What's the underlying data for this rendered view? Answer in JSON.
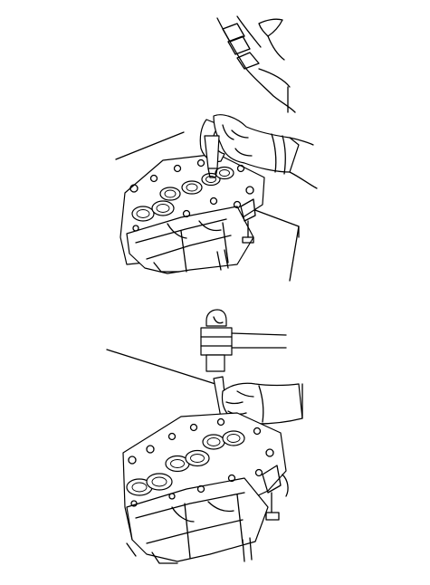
{
  "figure": {
    "panels": [
      {
        "name": "top-panel",
        "content": [
          "cylinder-head",
          "hand-tool",
          "hand"
        ]
      },
      {
        "name": "bottom-panel",
        "content": [
          "cylinder-head",
          "hammer",
          "drift-punch",
          "hand",
          "leader-line"
        ]
      }
    ],
    "line_color": "#000000",
    "background_color": "#ffffff"
  }
}
